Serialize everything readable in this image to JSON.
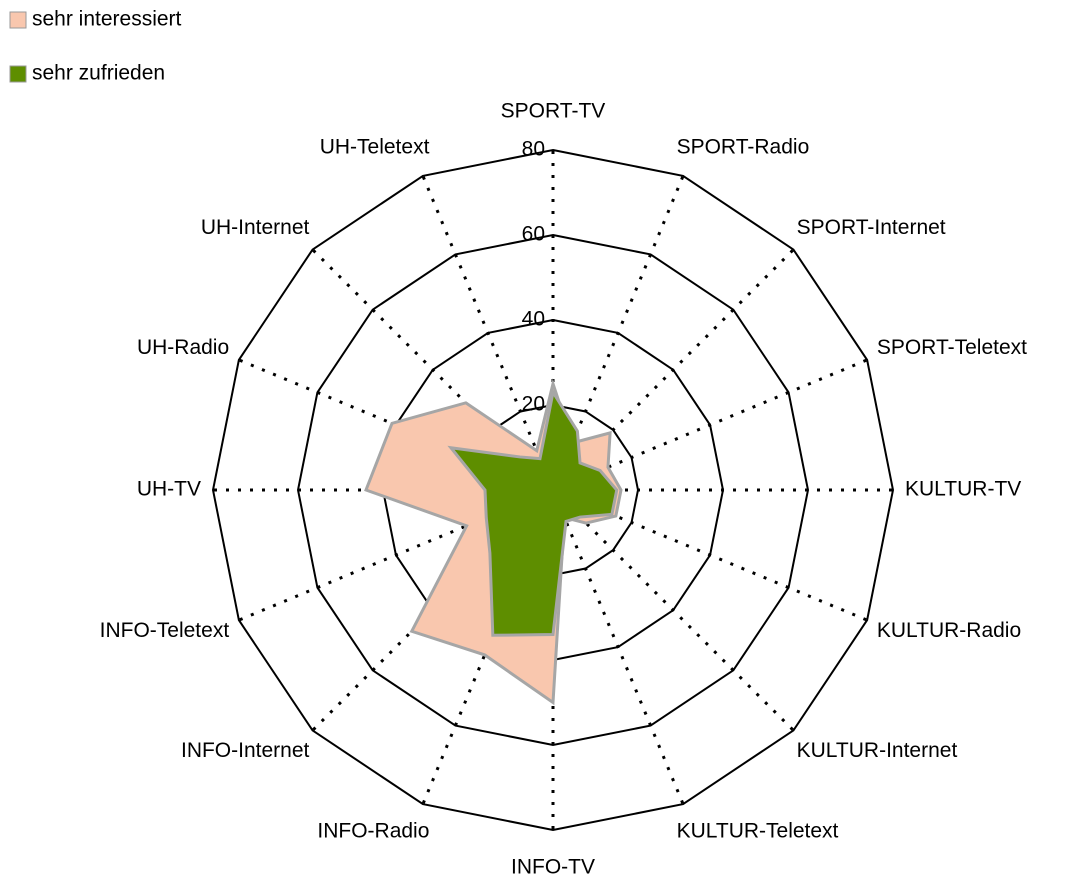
{
  "chart_data": {
    "type": "radar",
    "categories": [
      "SPORT-TV",
      "SPORT-Radio",
      "SPORT-Internet",
      "SPORT-Teletext",
      "KULTUR-TV",
      "KULTUR-Radio",
      "KULTUR-Internet",
      "KULTUR-Teletext",
      "INFO-TV",
      "INFO-Radio",
      "INFO-Internet",
      "INFO-Teletext",
      "UH-TV",
      "UH-Radio",
      "UH-Internet",
      "UH-Teletext"
    ],
    "series": [
      {
        "name": "sehr interessiert",
        "color": "#f9c7ae",
        "values": [
          25,
          12,
          19,
          14,
          16,
          16,
          11,
          7,
          50,
          42,
          47,
          22,
          44,
          41,
          29,
          10
        ]
      },
      {
        "name": "sehr zufrieden",
        "color": "#5e8e00",
        "values": [
          23,
          15,
          9,
          12,
          15,
          15,
          9,
          8,
          34,
          37,
          21,
          17,
          16,
          26,
          11,
          8
        ]
      }
    ],
    "ylim": [
      0,
      80
    ],
    "yticks": [
      0,
      20,
      40,
      60,
      80
    ],
    "grid": true,
    "legend": "top-left"
  }
}
